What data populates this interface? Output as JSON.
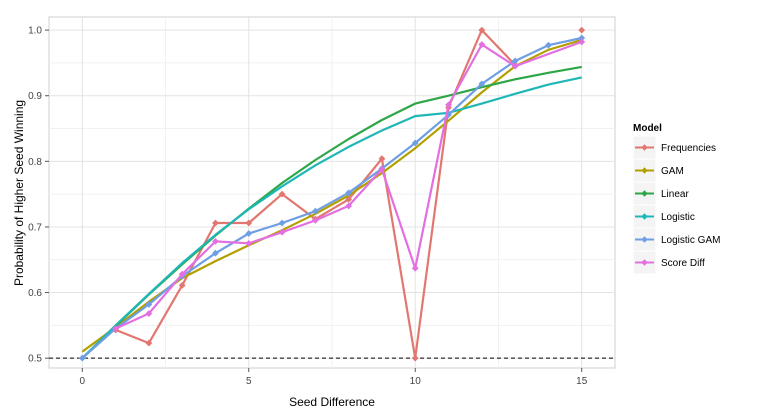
{
  "chart_data": {
    "type": "line",
    "title": "",
    "xlabel": "Seed Difference",
    "ylabel": "Probability of Higher Seed Winning",
    "xlim": [
      -1,
      16
    ],
    "ylim": [
      0.485,
      1.02
    ],
    "x_ticks": [
      0,
      5,
      10,
      15
    ],
    "y_ticks": [
      0.5,
      0.6,
      0.7,
      0.8,
      0.9,
      1.0
    ],
    "x_tick_labels": [
      "0",
      "5",
      "10",
      "15"
    ],
    "y_tick_labels": [
      "0.5",
      "0.6",
      "0.7",
      "0.8",
      "0.9",
      "1.0"
    ],
    "grid": true,
    "reference_line": {
      "y": 0.5,
      "style": "dashed"
    },
    "legend": {
      "title": "Model",
      "position": "right"
    },
    "series": [
      {
        "name": "Frequencies",
        "color": "#E27771",
        "style": "points+line",
        "x": [
          1,
          2,
          3,
          4,
          5,
          6,
          7,
          8,
          9,
          10,
          11,
          12,
          13,
          15
        ],
        "y": [
          0.543,
          0.523,
          0.611,
          0.706,
          0.706,
          0.75,
          0.712,
          0.742,
          0.804,
          0.5,
          0.882,
          1.0,
          0.947,
          1.0
        ],
        "line_excludes_last": true
      },
      {
        "name": "GAM",
        "color": "#B3A000",
        "style": "smooth",
        "x": [
          0,
          1,
          2,
          3,
          4,
          5,
          6,
          7,
          8,
          9,
          10,
          11,
          12,
          13,
          14,
          15
        ],
        "y": [
          0.51,
          0.547,
          0.586,
          0.622,
          0.648,
          0.672,
          0.695,
          0.72,
          0.748,
          0.782,
          0.82,
          0.862,
          0.905,
          0.945,
          0.97,
          0.985
        ]
      },
      {
        "name": "Linear",
        "color": "#2DA647",
        "style": "smooth",
        "x": [
          0,
          1,
          2,
          3,
          4,
          5,
          6,
          7,
          8,
          9,
          10,
          11,
          12,
          13,
          14,
          15
        ],
        "y": [
          0.5,
          0.549,
          0.597,
          0.643,
          0.687,
          0.728,
          0.767,
          0.802,
          0.834,
          0.863,
          0.888,
          0.9,
          0.913,
          0.925,
          0.935,
          0.944
        ]
      },
      {
        "name": "Logistic",
        "color": "#1FB6B6",
        "style": "smooth",
        "x": [
          0,
          1,
          2,
          3,
          4,
          5,
          6,
          7,
          8,
          9,
          10,
          11,
          12,
          13,
          14,
          15
        ],
        "y": [
          0.5,
          0.55,
          0.598,
          0.645,
          0.688,
          0.727,
          0.762,
          0.794,
          0.822,
          0.847,
          0.869,
          0.874,
          0.888,
          0.903,
          0.917,
          0.928
        ]
      },
      {
        "name": "Logistic GAM",
        "color": "#6E9EE3",
        "style": "points+line",
        "x": [
          0,
          1,
          2,
          3,
          4,
          5,
          6,
          7,
          8,
          9,
          10,
          11,
          12,
          13,
          14,
          15
        ],
        "y": [
          0.5,
          0.545,
          0.582,
          0.625,
          0.66,
          0.69,
          0.706,
          0.724,
          0.752,
          0.789,
          0.828,
          0.871,
          0.918,
          0.953,
          0.977,
          0.988
        ]
      },
      {
        "name": "Score Diff",
        "color": "#E36FE1",
        "style": "points+line",
        "x": [
          1,
          2,
          3,
          4,
          5,
          6,
          7,
          8,
          9,
          10,
          11,
          12,
          13,
          15
        ],
        "y": [
          0.545,
          0.568,
          0.628,
          0.678,
          0.675,
          0.692,
          0.71,
          0.732,
          0.788,
          0.637,
          0.886,
          0.978,
          0.945,
          0.982
        ]
      }
    ]
  }
}
